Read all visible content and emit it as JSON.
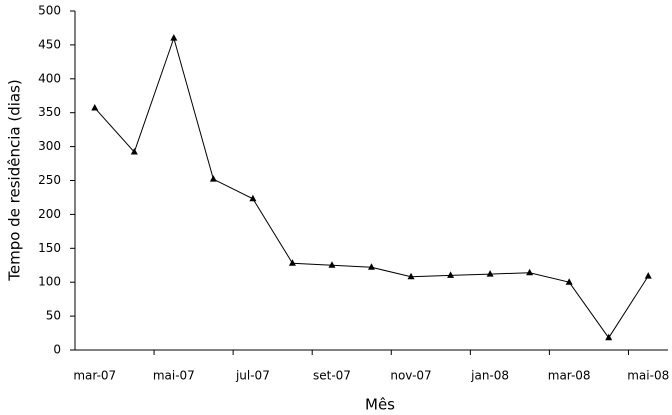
{
  "chart_data": {
    "type": "line",
    "x_label": "Mês",
    "y_label": "Tempo de residência (dias)",
    "categories": [
      "mar-07",
      null,
      "mai-07",
      null,
      "jul-07",
      null,
      "set-07",
      null,
      "nov-07",
      null,
      "jan-08",
      null,
      "mar-08",
      null,
      "mai-08"
    ],
    "series": [
      {
        "name": "Tempo de residência",
        "color": "#000000",
        "values": [
          357,
          292,
          460,
          252,
          223,
          128,
          125,
          122,
          108,
          110,
          112,
          114,
          100,
          18,
          109
        ]
      }
    ],
    "ylim": [
      0,
      500
    ],
    "yticks": [
      0,
      50,
      100,
      150,
      200,
      250,
      300,
      350,
      400,
      450,
      500
    ],
    "grid": false
  }
}
